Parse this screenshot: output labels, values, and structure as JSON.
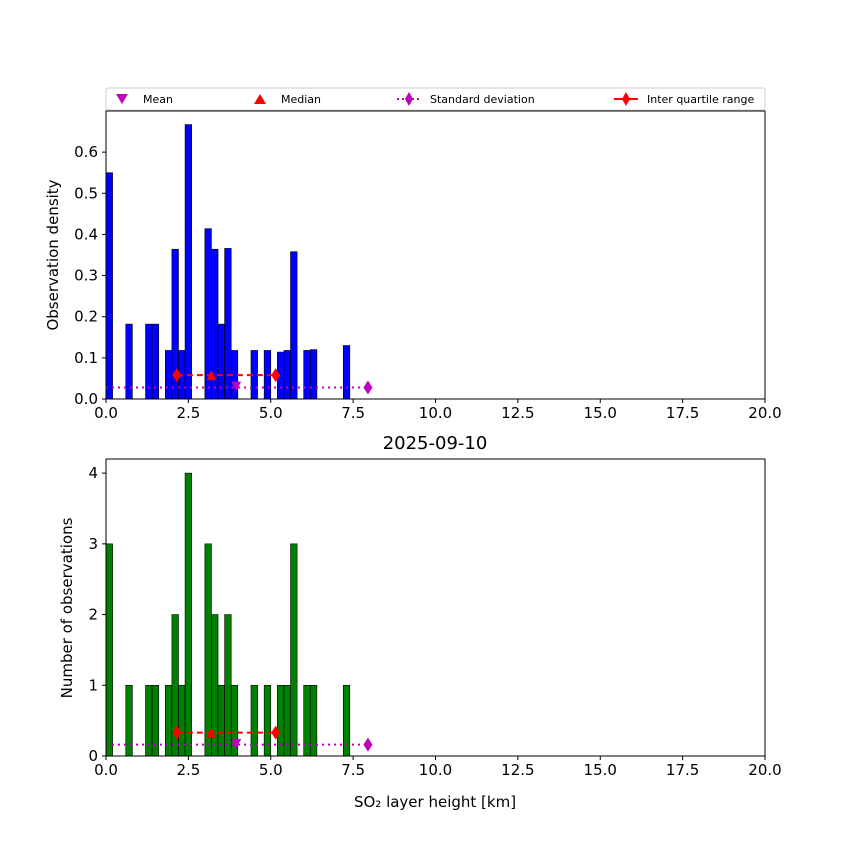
{
  "legend": {
    "placement": "top",
    "entries": [
      {
        "label": "Mean",
        "color": "#bf00bf",
        "marker": "triangle-down",
        "line": "none"
      },
      {
        "label": "Median",
        "color": "#ff0000",
        "marker": "triangle-up",
        "line": "none"
      },
      {
        "label": "Standard deviation",
        "color": "#bf00bf",
        "marker": "diamond",
        "line": "dotted"
      },
      {
        "label": "Inter quartile range",
        "color": "#ff0000",
        "marker": "diamond",
        "line": "solid"
      }
    ]
  },
  "chart_data": [
    {
      "type": "bar",
      "title": "",
      "xlabel": "",
      "ylabel": "Observation density",
      "xlim": [
        0,
        20
      ],
      "ylim": [
        0,
        0.7
      ],
      "xticks": [
        "0.0",
        "2.5",
        "5.0",
        "7.5",
        "10.0",
        "12.5",
        "15.0",
        "17.5",
        "20.0"
      ],
      "yticks": [
        "0.0",
        "0.1",
        "0.2",
        "0.3",
        "0.4",
        "0.5",
        "0.6"
      ],
      "bar_color": "#0000ff",
      "bar_width": 0.2,
      "bars": [
        {
          "x": 0.1,
          "value": 0.55
        },
        {
          "x": 0.7,
          "value": 0.182
        },
        {
          "x": 1.3,
          "value": 0.182
        },
        {
          "x": 1.5,
          "value": 0.182
        },
        {
          "x": 1.9,
          "value": 0.118
        },
        {
          "x": 2.1,
          "value": 0.364
        },
        {
          "x": 2.3,
          "value": 0.118
        },
        {
          "x": 2.5,
          "value": 0.667
        },
        {
          "x": 3.1,
          "value": 0.414
        },
        {
          "x": 3.3,
          "value": 0.364
        },
        {
          "x": 3.5,
          "value": 0.182
        },
        {
          "x": 3.7,
          "value": 0.366
        },
        {
          "x": 3.9,
          "value": 0.118
        },
        {
          "x": 4.5,
          "value": 0.118
        },
        {
          "x": 4.9,
          "value": 0.118
        },
        {
          "x": 5.3,
          "value": 0.114
        },
        {
          "x": 5.5,
          "value": 0.118
        },
        {
          "x": 5.7,
          "value": 0.358
        },
        {
          "x": 6.1,
          "value": 0.118
        },
        {
          "x": 6.3,
          "value": 0.12
        },
        {
          "x": 7.3,
          "value": 0.13
        }
      ],
      "stats": {
        "mean": {
          "x": 3.95,
          "y": 0.03
        },
        "median": {
          "x": 3.2,
          "y": 0.058
        },
        "std_range": {
          "x": [
            0.0,
            7.95
          ],
          "y": 0.028
        },
        "iqr_range": {
          "x": [
            2.15,
            5.15
          ],
          "y": 0.058
        }
      }
    },
    {
      "type": "bar",
      "title": "2025-09-10",
      "xlabel": "SO₂ layer height [km]",
      "ylabel": "Number of observations",
      "xlim": [
        0,
        20
      ],
      "ylim": [
        0,
        4.2
      ],
      "xticks": [
        "0.0",
        "2.5",
        "5.0",
        "7.5",
        "10.0",
        "12.5",
        "15.0",
        "17.5",
        "20.0"
      ],
      "yticks": [
        "0",
        "1",
        "2",
        "3",
        "4"
      ],
      "bar_color": "#008000",
      "bar_width": 0.2,
      "bars": [
        {
          "x": 0.1,
          "value": 3
        },
        {
          "x": 0.7,
          "value": 1
        },
        {
          "x": 1.3,
          "value": 1
        },
        {
          "x": 1.5,
          "value": 1
        },
        {
          "x": 1.9,
          "value": 1
        },
        {
          "x": 2.1,
          "value": 2
        },
        {
          "x": 2.3,
          "value": 1
        },
        {
          "x": 2.5,
          "value": 4
        },
        {
          "x": 3.1,
          "value": 3
        },
        {
          "x": 3.3,
          "value": 2
        },
        {
          "x": 3.5,
          "value": 1
        },
        {
          "x": 3.7,
          "value": 2
        },
        {
          "x": 3.9,
          "value": 1
        },
        {
          "x": 4.5,
          "value": 1
        },
        {
          "x": 4.9,
          "value": 1
        },
        {
          "x": 5.3,
          "value": 1
        },
        {
          "x": 5.5,
          "value": 1
        },
        {
          "x": 5.7,
          "value": 3
        },
        {
          "x": 6.1,
          "value": 1
        },
        {
          "x": 6.3,
          "value": 1
        },
        {
          "x": 7.3,
          "value": 1
        }
      ],
      "stats": {
        "mean": {
          "x": 3.95,
          "y": 0.17
        },
        "median": {
          "x": 3.2,
          "y": 0.33
        },
        "std_range": {
          "x": [
            0.0,
            7.95
          ],
          "y": 0.16
        },
        "iqr_range": {
          "x": [
            2.15,
            5.15
          ],
          "y": 0.33
        }
      }
    }
  ]
}
